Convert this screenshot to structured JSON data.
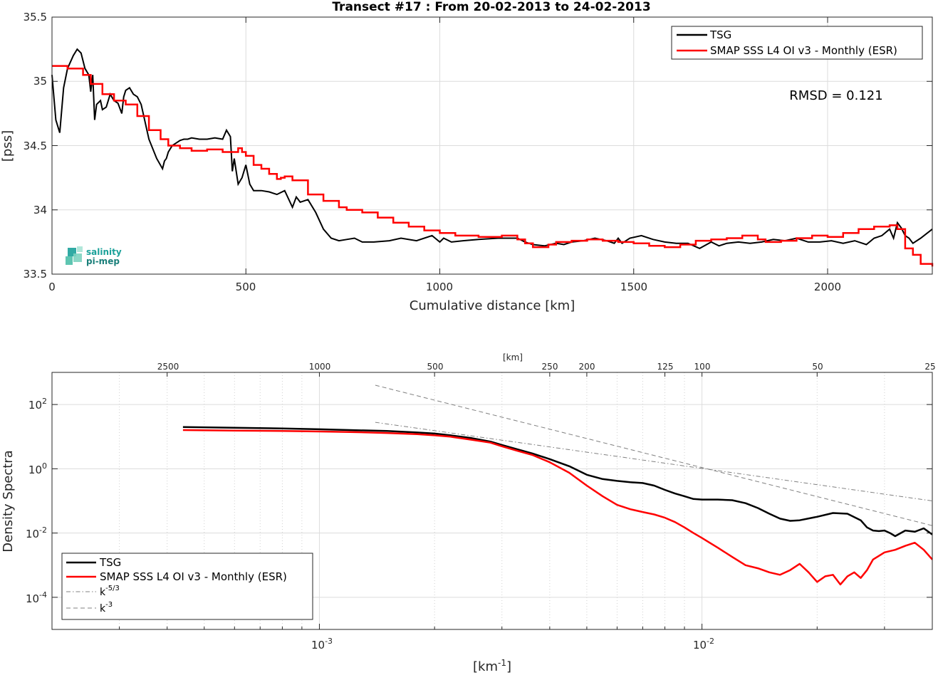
{
  "title": "Transect #17 : From 20-02-2013 to 24-02-2013",
  "colors": {
    "tsg": "#000000",
    "smap": "#ff0000",
    "ref": "#808080",
    "logo": "#1ba19a"
  },
  "logo": {
    "line1": "salinity",
    "line2": "pi-mep",
    "icon": "salinity-pi-mep-logo-icon"
  },
  "top": {
    "xlabel": "Cumulative distance [km]",
    "ylabel": "[pss]",
    "xlim": [
      0,
      2270
    ],
    "ylim": [
      33.5,
      35.5
    ],
    "xticks": [
      "0",
      "500",
      "1000",
      "1500",
      "2000"
    ],
    "yticks": [
      "33.5",
      "34",
      "34.5",
      "35",
      "35.5"
    ],
    "annotation": "RMSD = 0.121",
    "legend": [
      "TSG",
      "SMAP SSS L4 OI v3 - Monthly (ESR)"
    ]
  },
  "bottom": {
    "xlabel": "[km",
    "xlabel_sup": "-1",
    "xlabel_close": "]",
    "ylabel": "Density Spectra",
    "top_axis_label": "[km]",
    "xlim": [
      0.0002,
      0.04
    ],
    "ylim": [
      1e-05,
      1000
    ],
    "top_ticks": [
      "2500",
      "1000",
      "500",
      "250",
      "200",
      "125",
      "100",
      "50",
      "25"
    ],
    "x_major": [
      {
        "base": "10",
        "exp": "-3"
      },
      {
        "base": "10",
        "exp": "-2"
      }
    ],
    "y_major": [
      {
        "base": "10",
        "exp": "2"
      },
      {
        "base": "10",
        "exp": "0"
      },
      {
        "base": "10",
        "exp": "-2"
      },
      {
        "base": "10",
        "exp": "-4"
      }
    ],
    "legend": [
      "TSG",
      "SMAP SSS L4 OI v3 - Monthly (ESR)",
      "k",
      "k"
    ],
    "legend_sup": [
      "-5/3",
      "-3"
    ]
  },
  "chart_data": [
    {
      "type": "line",
      "title": "Transect #17 : From 20-02-2013 to 24-02-2013",
      "xlabel": "Cumulative distance [km]",
      "ylabel": "[pss]",
      "xlim": [
        0,
        2270
      ],
      "ylim": [
        33.5,
        35.5
      ],
      "grid": true,
      "legend_position": "top-right",
      "series": [
        {
          "name": "TSG",
          "x": [
            0,
            10,
            20,
            30,
            40,
            55,
            65,
            75,
            85,
            95,
            100,
            105,
            110,
            115,
            125,
            130,
            140,
            150,
            160,
            170,
            180,
            185,
            190,
            200,
            210,
            220,
            230,
            250,
            270,
            285,
            290,
            295,
            300,
            310,
            320,
            330,
            340,
            350,
            360,
            380,
            400,
            420,
            440,
            450,
            460,
            465,
            470,
            480,
            490,
            500,
            510,
            520,
            540,
            560,
            580,
            600,
            620,
            630,
            640,
            660,
            680,
            700,
            720,
            740,
            760,
            780,
            800,
            830,
            870,
            900,
            940,
            980,
            1000,
            1010,
            1030,
            1060,
            1100,
            1150,
            1200,
            1220,
            1240,
            1270,
            1300,
            1320,
            1340,
            1370,
            1400,
            1430,
            1450,
            1460,
            1470,
            1490,
            1520,
            1550,
            1580,
            1610,
            1640,
            1670,
            1700,
            1720,
            1740,
            1770,
            1800,
            1830,
            1860,
            1890,
            1920,
            1950,
            1980,
            2010,
            2040,
            2070,
            2100,
            2120,
            2140,
            2160,
            2170,
            2180,
            2190,
            2200,
            2210,
            2220,
            2240,
            2270
          ],
          "values": [
            35.05,
            34.7,
            34.6,
            34.95,
            35.1,
            35.2,
            35.25,
            35.22,
            35.1,
            35.05,
            34.92,
            35.05,
            34.7,
            34.82,
            34.85,
            34.78,
            34.8,
            34.9,
            34.85,
            34.83,
            34.75,
            34.88,
            34.93,
            34.95,
            34.9,
            34.88,
            34.82,
            34.55,
            34.4,
            34.32,
            34.38,
            34.4,
            34.45,
            34.5,
            34.52,
            34.54,
            34.55,
            34.55,
            34.56,
            34.55,
            34.55,
            34.56,
            34.55,
            34.62,
            34.57,
            34.3,
            34.4,
            34.2,
            34.25,
            34.35,
            34.2,
            34.15,
            34.15,
            34.14,
            34.12,
            34.15,
            34.02,
            34.1,
            34.06,
            34.08,
            33.98,
            33.85,
            33.78,
            33.76,
            33.77,
            33.78,
            33.75,
            33.75,
            33.76,
            33.78,
            33.76,
            33.8,
            33.75,
            33.78,
            33.75,
            33.76,
            33.77,
            33.78,
            33.78,
            33.75,
            33.73,
            33.72,
            33.74,
            33.73,
            33.75,
            33.76,
            33.78,
            33.76,
            33.74,
            33.78,
            33.74,
            33.78,
            33.8,
            33.77,
            33.75,
            33.74,
            33.74,
            33.7,
            33.75,
            33.72,
            33.74,
            33.75,
            33.74,
            33.75,
            33.77,
            33.76,
            33.78,
            33.75,
            33.75,
            33.76,
            33.74,
            33.76,
            33.73,
            33.78,
            33.8,
            33.85,
            33.78,
            33.9,
            33.86,
            33.8,
            33.78,
            33.74,
            33.78,
            33.85
          ]
        },
        {
          "name": "SMAP SSS L4 OI v3 - Monthly (ESR)",
          "x": [
            0,
            40,
            80,
            100,
            130,
            160,
            190,
            220,
            250,
            280,
            300,
            330,
            360,
            400,
            440,
            480,
            490,
            500,
            520,
            540,
            560,
            580,
            590,
            600,
            620,
            660,
            700,
            740,
            760,
            800,
            840,
            880,
            920,
            960,
            1000,
            1040,
            1100,
            1160,
            1200,
            1220,
            1240,
            1280,
            1300,
            1340,
            1380,
            1420,
            1460,
            1500,
            1540,
            1580,
            1620,
            1660,
            1700,
            1740,
            1780,
            1820,
            1840,
            1880,
            1920,
            1960,
            2000,
            2040,
            2080,
            2120,
            2160,
            2180,
            2200,
            2220,
            2240,
            2270
          ],
          "values": [
            35.12,
            35.1,
            35.05,
            34.98,
            34.9,
            34.85,
            34.82,
            34.73,
            34.62,
            34.55,
            34.5,
            34.48,
            34.46,
            34.47,
            34.45,
            34.48,
            34.45,
            34.42,
            34.35,
            34.32,
            34.28,
            34.24,
            34.25,
            34.26,
            34.23,
            34.12,
            34.07,
            34.02,
            34.0,
            33.98,
            33.94,
            33.9,
            33.87,
            33.84,
            33.82,
            33.8,
            33.79,
            33.8,
            33.77,
            33.74,
            33.71,
            33.73,
            33.75,
            33.76,
            33.77,
            33.76,
            33.75,
            33.74,
            33.72,
            33.71,
            33.73,
            33.76,
            33.77,
            33.78,
            33.8,
            33.77,
            33.75,
            33.76,
            33.78,
            33.8,
            33.79,
            33.82,
            33.85,
            33.87,
            33.88,
            33.85,
            33.7,
            33.65,
            33.58,
            33.56
          ]
        }
      ]
    },
    {
      "type": "line",
      "xlabel": "[km-1]",
      "ylabel": "Density Spectra",
      "xscale": "log",
      "yscale": "log",
      "xlim": [
        0.0002,
        0.04
      ],
      "ylim": [
        1e-05,
        1000
      ],
      "grid": true,
      "legend_position": "bottom-left",
      "series": [
        {
          "name": "TSG",
          "x": [
            0.00044,
            0.0006,
            0.0008,
            0.001,
            0.0012,
            0.0015,
            0.0018,
            0.002,
            0.0022,
            0.0025,
            0.0028,
            0.003,
            0.0033,
            0.0036,
            0.004,
            0.0045,
            0.005,
            0.0055,
            0.006,
            0.0065,
            0.007,
            0.0075,
            0.008,
            0.0085,
            0.009,
            0.0095,
            0.01,
            0.011,
            0.012,
            0.013,
            0.014,
            0.015,
            0.016,
            0.017,
            0.018,
            0.02,
            0.022,
            0.024,
            0.026,
            0.027,
            0.028,
            0.029,
            0.03,
            0.031,
            0.032,
            0.034,
            0.036,
            0.038,
            0.04
          ],
          "values": [
            20,
            19,
            18,
            17,
            16,
            15,
            13.5,
            12.5,
            11,
            9,
            7,
            5.5,
            4,
            3,
            2,
            1.2,
            0.65,
            0.48,
            0.42,
            0.38,
            0.36,
            0.3,
            0.22,
            0.17,
            0.14,
            0.115,
            0.11,
            0.11,
            0.105,
            0.085,
            0.06,
            0.04,
            0.028,
            0.024,
            0.025,
            0.032,
            0.042,
            0.04,
            0.025,
            0.015,
            0.012,
            0.0115,
            0.012,
            0.01,
            0.008,
            0.012,
            0.011,
            0.014,
            0.009
          ]
        },
        {
          "name": "SMAP SSS L4 OI v3 - Monthly (ESR)",
          "x": [
            0.00044,
            0.0006,
            0.0008,
            0.001,
            0.0012,
            0.0015,
            0.0018,
            0.002,
            0.0022,
            0.0025,
            0.0028,
            0.003,
            0.0033,
            0.0036,
            0.004,
            0.0045,
            0.005,
            0.0055,
            0.006,
            0.0065,
            0.007,
            0.0075,
            0.008,
            0.0085,
            0.009,
            0.0095,
            0.01,
            0.011,
            0.012,
            0.013,
            0.014,
            0.015,
            0.016,
            0.017,
            0.018,
            0.019,
            0.02,
            0.021,
            0.022,
            0.023,
            0.024,
            0.025,
            0.026,
            0.027,
            0.028,
            0.03,
            0.032,
            0.034,
            0.036,
            0.038,
            0.04
          ],
          "values": [
            16,
            15.5,
            15,
            14.5,
            14,
            13,
            12,
            11,
            10,
            8,
            6.5,
            5,
            3.6,
            2.7,
            1.6,
            0.75,
            0.3,
            0.14,
            0.075,
            0.055,
            0.045,
            0.038,
            0.03,
            0.022,
            0.015,
            0.01,
            0.007,
            0.0035,
            0.0018,
            0.001,
            0.0008,
            0.0006,
            0.0005,
            0.0007,
            0.0011,
            0.0006,
            0.0003,
            0.00045,
            0.0005,
            0.00025,
            0.00045,
            0.0006,
            0.0004,
            0.0007,
            0.0015,
            0.0025,
            0.003,
            0.004,
            0.005,
            0.003,
            0.0015
          ]
        },
        {
          "name": "k-5/3",
          "x": [
            0.0014,
            0.04
          ],
          "values": [
            28,
            0.1
          ]
        },
        {
          "name": "k-3",
          "x": [
            0.0014,
            0.04
          ],
          "values": [
            400,
            0.017
          ]
        }
      ]
    }
  ]
}
